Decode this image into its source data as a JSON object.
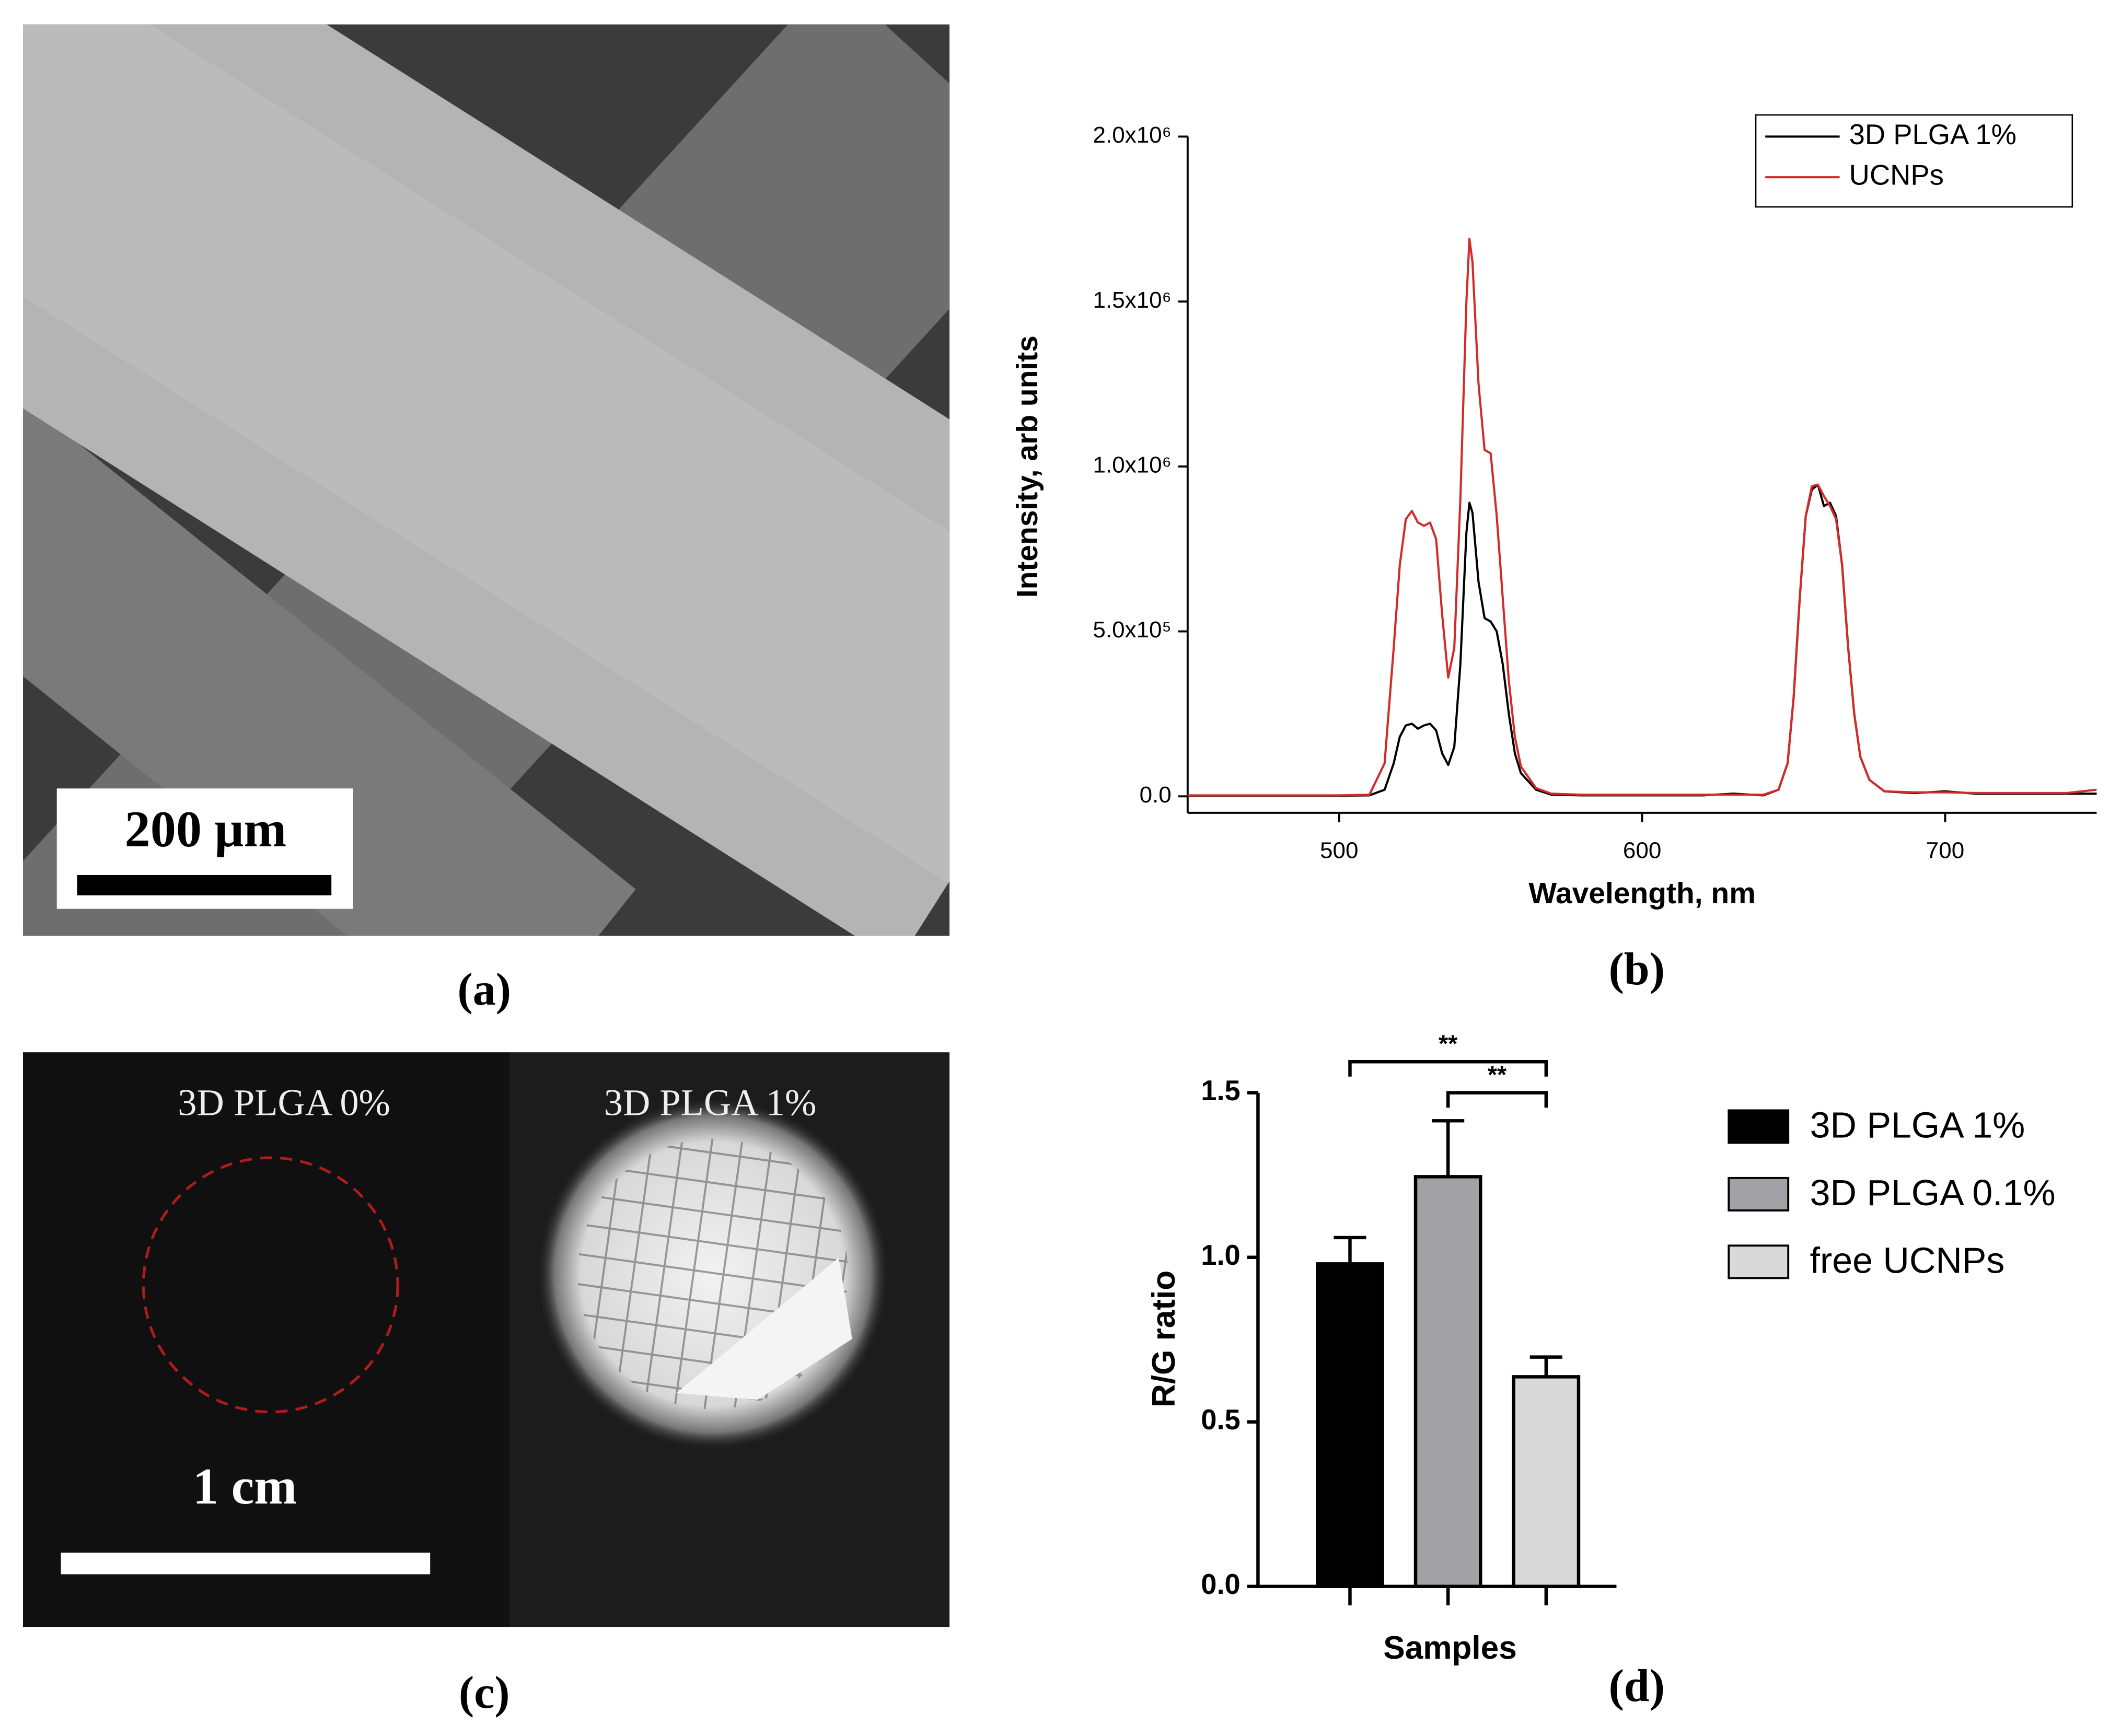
{
  "panels": {
    "a": {
      "label": "(a)",
      "scale_bar": "200 μm"
    },
    "b": {
      "label": "(b)"
    },
    "c": {
      "label": "(c)",
      "left_title": "3D PLGA 0%",
      "right_title": "3D PLGA 1%",
      "scale_bar": "1 cm"
    },
    "d": {
      "label": "(d)"
    }
  },
  "chart_data": [
    {
      "type": "line",
      "y_label": "Intensity, arb units",
      "x_label": "Wavelength, nm",
      "xlim": [
        450,
        750
      ],
      "xticks": [
        500,
        600,
        700
      ],
      "ylim": [
        -50000,
        2000000
      ],
      "yticks": [
        {
          "value": 0,
          "label": "0.0"
        },
        {
          "value": 500000,
          "label": "5.0x10⁵"
        },
        {
          "value": 1000000,
          "label": "1.0x10⁶"
        },
        {
          "value": 1500000,
          "label": "1.5x10⁶"
        },
        {
          "value": 2000000,
          "label": "2.0x10⁶"
        }
      ],
      "legend": "top-right",
      "x": [
        450,
        460,
        470,
        480,
        490,
        500,
        510,
        515,
        518,
        520,
        522,
        524,
        526,
        528,
        530,
        532,
        534,
        536,
        538,
        540,
        542,
        543,
        544,
        546,
        548,
        550,
        552,
        554,
        556,
        558,
        560,
        565,
        570,
        580,
        590,
        600,
        610,
        620,
        630,
        640,
        645,
        648,
        650,
        652,
        654,
        656,
        658,
        660,
        662,
        664,
        666,
        668,
        670,
        672,
        675,
        680,
        690,
        700,
        710,
        720,
        730,
        740,
        750
      ],
      "series": [
        {
          "name": "3D PLGA 1%",
          "color": "#000000",
          "values": [
            2000,
            2000,
            2000,
            2000,
            2000,
            2000,
            3000,
            20000,
            100000,
            180000,
            215000,
            220000,
            205000,
            215000,
            220000,
            200000,
            130000,
            95000,
            150000,
            400000,
            800000,
            890000,
            860000,
            650000,
            540000,
            530000,
            500000,
            400000,
            250000,
            130000,
            70000,
            20000,
            5000,
            3000,
            3000,
            3000,
            3000,
            3000,
            8000,
            3000,
            20000,
            100000,
            300000,
            600000,
            850000,
            930000,
            945000,
            880000,
            890000,
            850000,
            700000,
            450000,
            250000,
            120000,
            50000,
            15000,
            10000,
            15000,
            8000,
            8000,
            8000,
            8000,
            8000
          ]
        },
        {
          "name": "UCNPs",
          "color": "#d42a2a",
          "values": [
            3000,
            3000,
            3000,
            3000,
            3000,
            3000,
            5000,
            100000,
            450000,
            700000,
            840000,
            865000,
            830000,
            820000,
            830000,
            780000,
            550000,
            360000,
            450000,
            900000,
            1500000,
            1690000,
            1620000,
            1250000,
            1050000,
            1040000,
            850000,
            600000,
            350000,
            180000,
            90000,
            25000,
            8000,
            5000,
            5000,
            5000,
            5000,
            5000,
            5000,
            5000,
            20000,
            100000,
            300000,
            600000,
            850000,
            940000,
            945000,
            910000,
            880000,
            840000,
            700000,
            450000,
            250000,
            120000,
            50000,
            15000,
            12000,
            12000,
            10000,
            10000,
            10000,
            10000,
            20000
          ]
        }
      ]
    },
    {
      "type": "bar",
      "y_label": "R/G ratio",
      "x_label": "Samples",
      "ylim": [
        0,
        1.5
      ],
      "yticks": [
        {
          "value": 0,
          "label": "0.0"
        },
        0.5,
        {
          "value": 1,
          "label": "1.0"
        },
        1.5
      ],
      "legend": "right",
      "categories": [
        null,
        null,
        null
      ],
      "series": [
        {
          "name": "3D PLGA 1%",
          "color": "#000000",
          "values": [
            0.98,
            null,
            null
          ],
          "errors": [
            0.08,
            null,
            null
          ]
        },
        {
          "name": "3D PLGA 0.1%",
          "color": "#a2a2a6",
          "values": [
            null,
            1.245,
            null
          ],
          "errors": [
            null,
            0.17,
            null
          ]
        },
        {
          "name": "free UCNPs",
          "color": "#d9d9d9",
          "values": [
            null,
            null,
            0.637
          ],
          "errors": [
            null,
            null,
            0.06
          ]
        }
      ],
      "annotations": [
        "**",
        "**"
      ]
    }
  ]
}
